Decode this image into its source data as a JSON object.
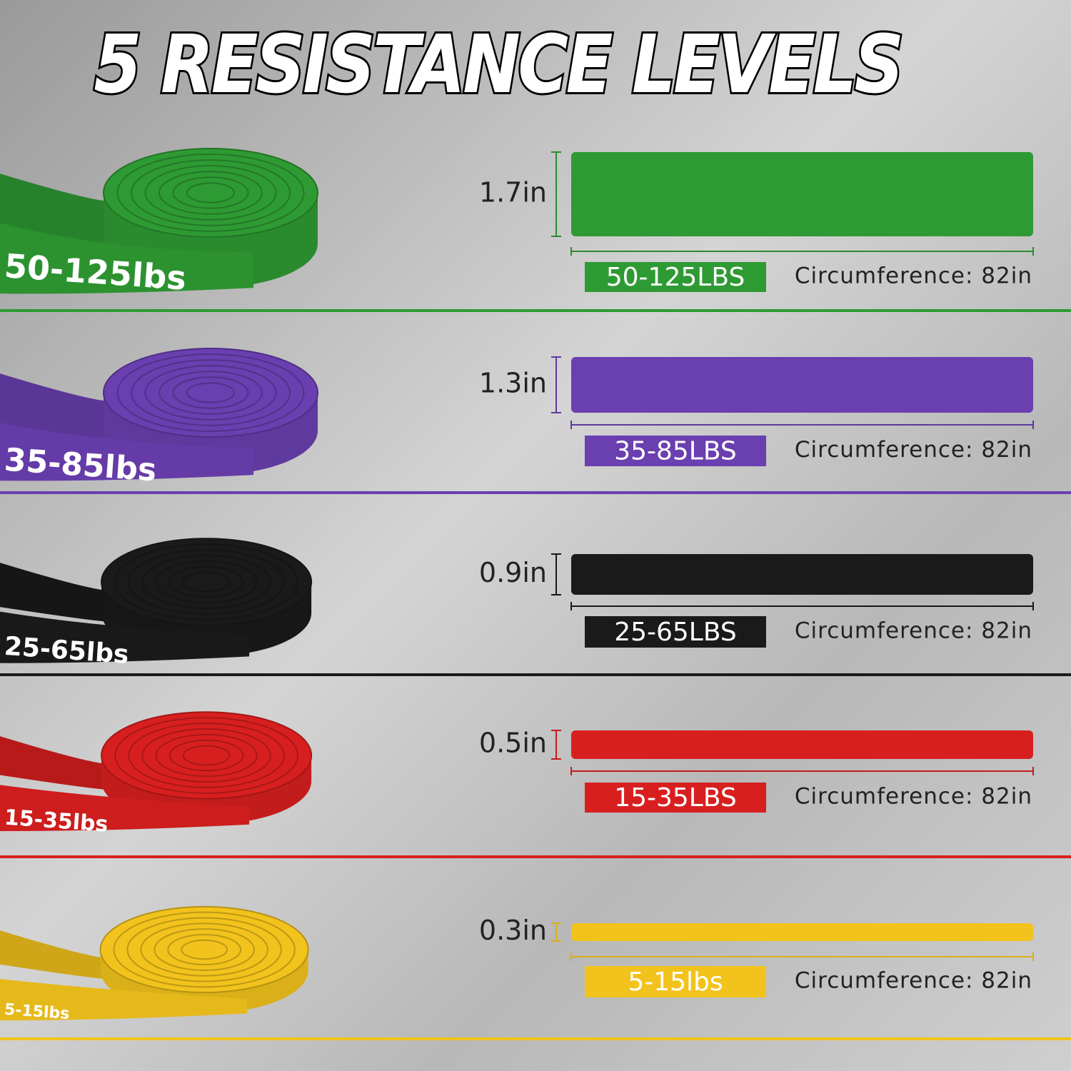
{
  "title": "5 RESISTANCE LEVELS",
  "bands": [
    {
      "coil_label": "50-125lbs",
      "width": "1.7in",
      "tag": "50-125LBS",
      "circumference": "Circumference: 82in",
      "color": "#2e9a33"
    },
    {
      "coil_label": "35-85lbs",
      "width": "1.3in",
      "tag": "35-85LBS",
      "circumference": "Circumference: 82in",
      "color": "#6a3fb0"
    },
    {
      "coil_label": "25-65lbs",
      "width": "0.9in",
      "tag": "25-65LBS",
      "circumference": "Circumference: 82in",
      "color": "#1a1a1a"
    },
    {
      "coil_label": "15-35lbs",
      "width": "0.5in",
      "tag": "15-35LBS",
      "circumference": "Circumference: 82in",
      "color": "#d81f1f"
    },
    {
      "coil_label": "5-15lbs",
      "width": "0.3in",
      "tag": "5-15lbs",
      "circumference": "Circumference: 82in",
      "color": "#f2c31c"
    }
  ]
}
